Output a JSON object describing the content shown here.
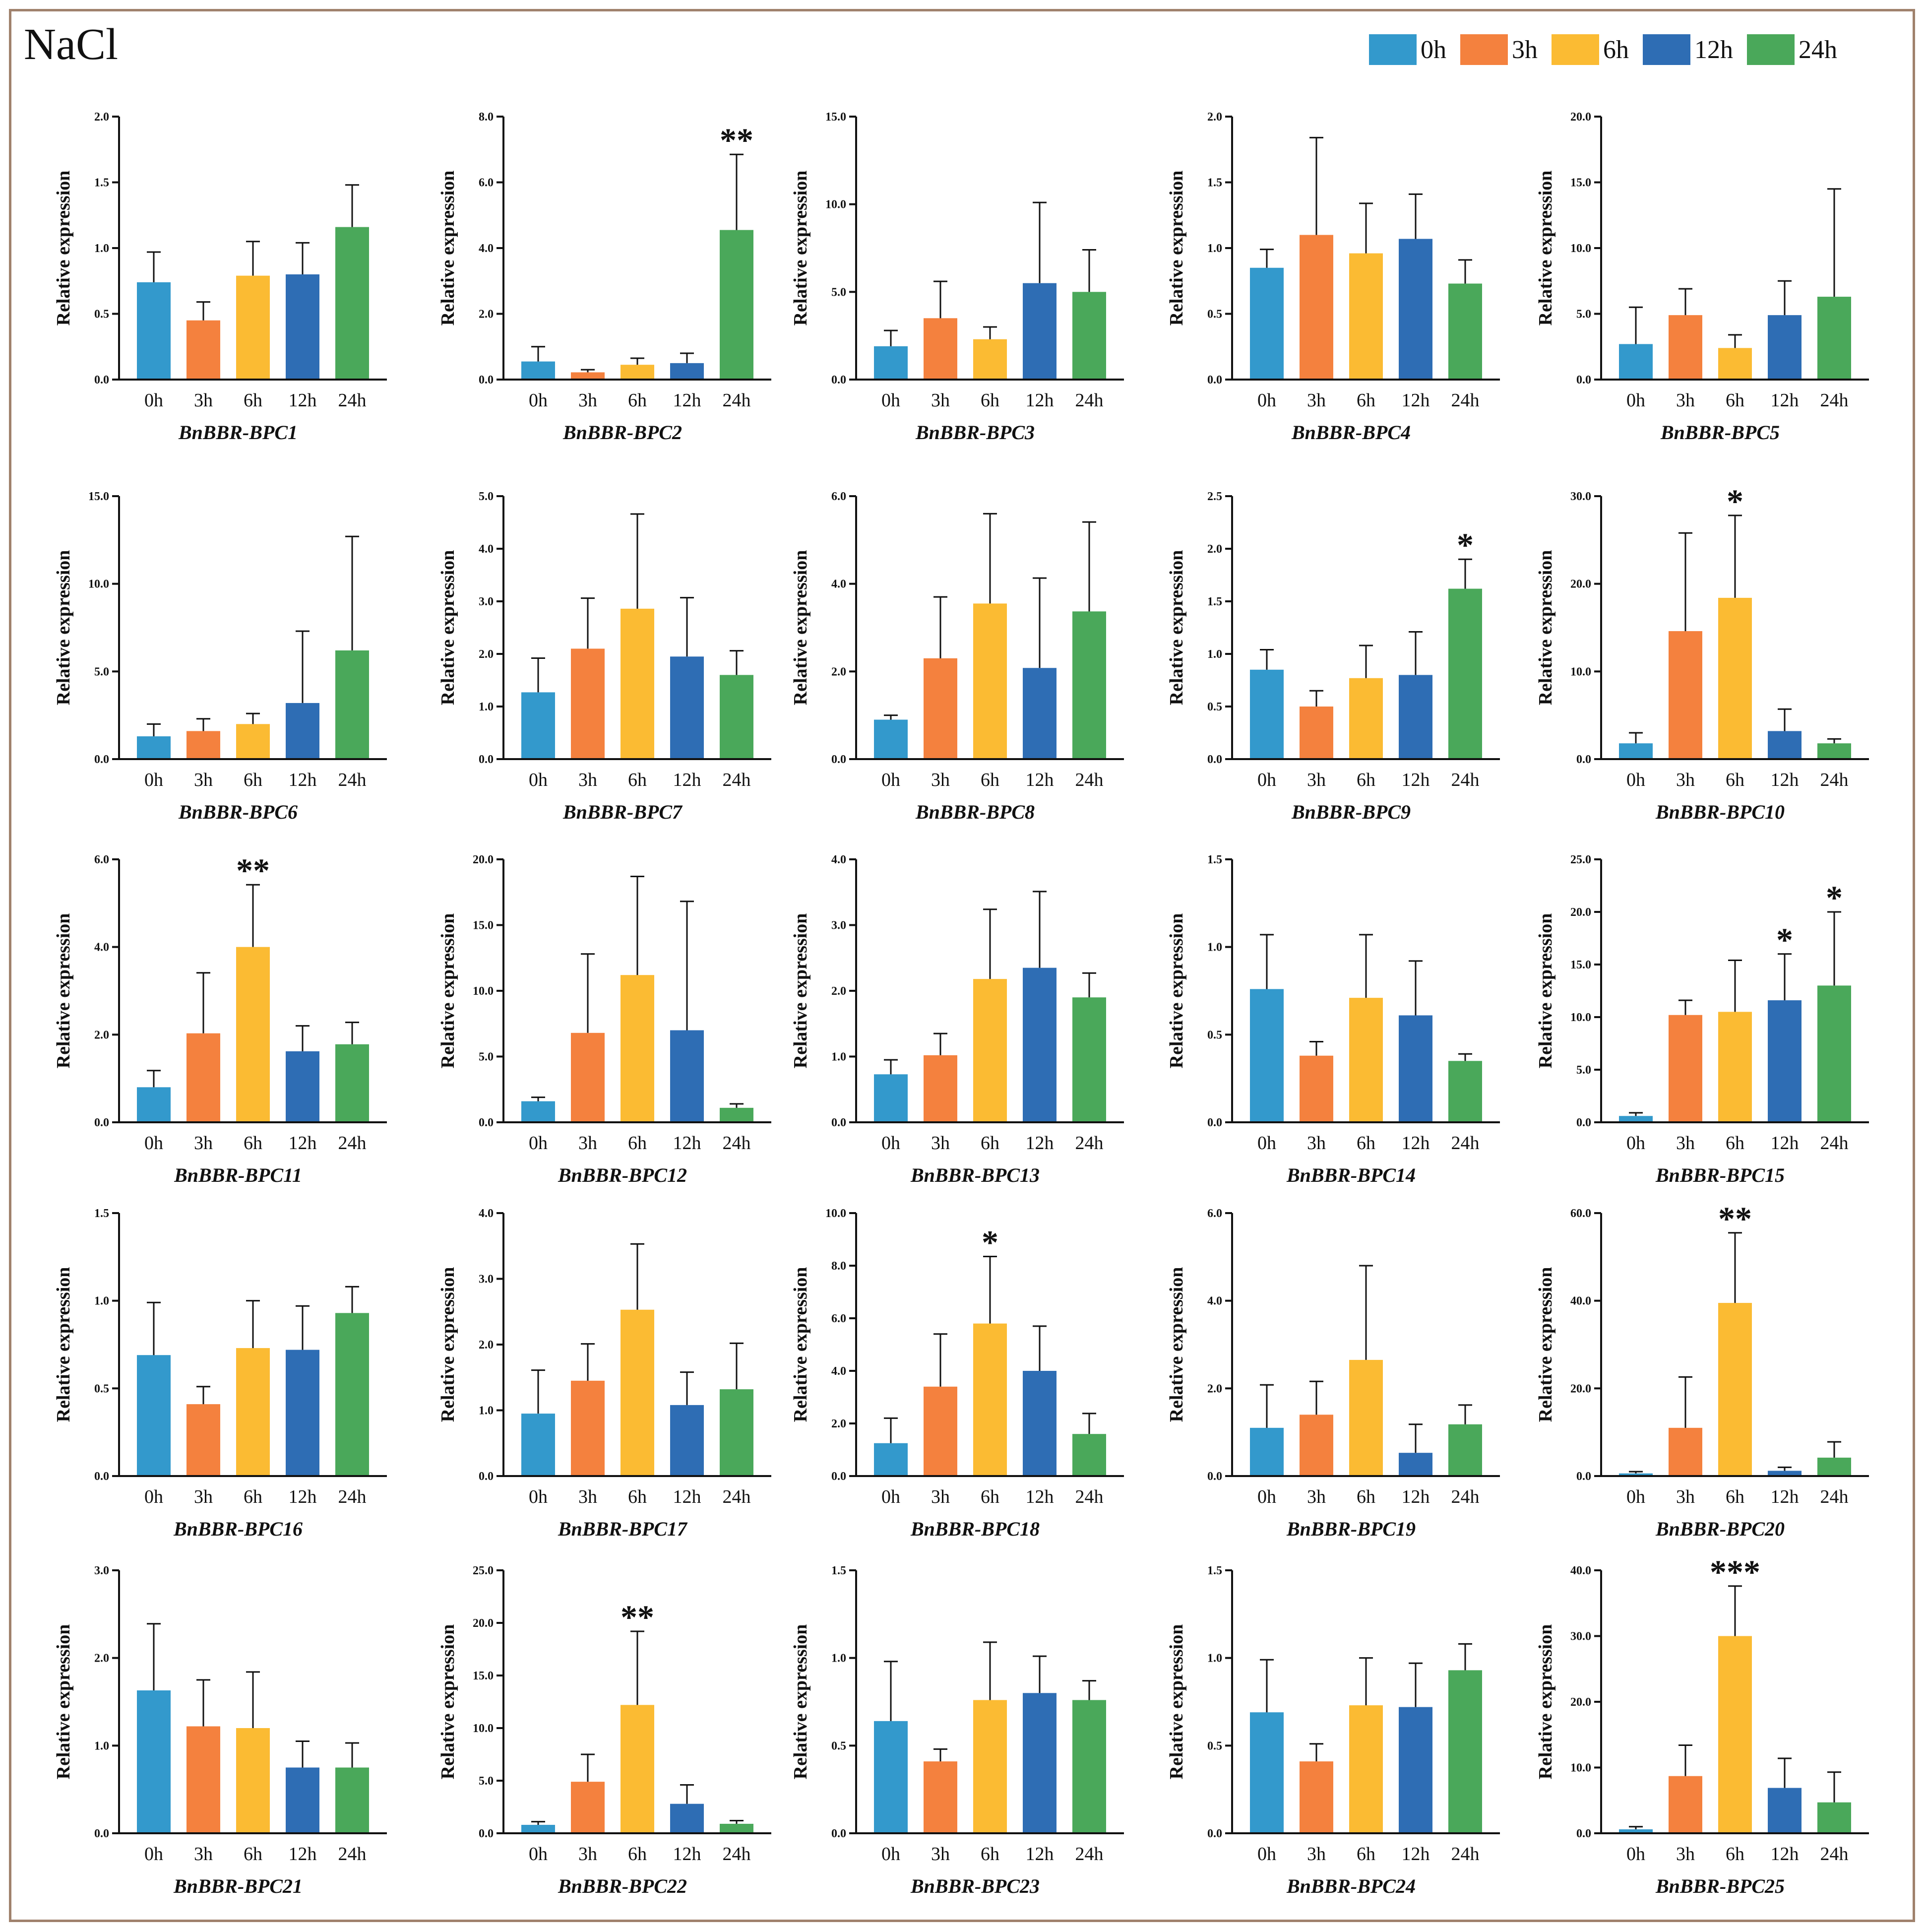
{
  "title": "NaCl",
  "legend": {
    "items": [
      {
        "label": "0h",
        "color": "#3399cc"
      },
      {
        "label": "3h",
        "color": "#f4813e"
      },
      {
        "label": "6h",
        "color": "#fbbb33"
      },
      {
        "label": "12h",
        "color": "#2e6db4"
      },
      {
        "label": "24h",
        "color": "#4aa85a"
      }
    ]
  },
  "chart_data": [
    {
      "type": "bar",
      "title": "BnBBR-BPC1",
      "ylabel": "Relative expression",
      "categories": [
        "0h",
        "3h",
        "6h",
        "12h",
        "24h"
      ],
      "yticks": [
        "0.0",
        "0.5",
        "1.0",
        "1.5",
        "2.0"
      ],
      "ylim": [
        0,
        2
      ],
      "values": [
        0.74,
        0.45,
        0.79,
        0.8,
        1.16
      ],
      "errors": [
        0.23,
        0.14,
        0.26,
        0.24,
        0.32
      ],
      "significance": [
        "",
        "",
        "",
        "",
        ""
      ]
    },
    {
      "type": "bar",
      "title": "BnBBR-BPC2",
      "ylabel": "Relative expression",
      "categories": [
        "0h",
        "3h",
        "6h",
        "12h",
        "24h"
      ],
      "yticks": [
        "0.0",
        "2.0",
        "4.0",
        "6.0",
        "8.0"
      ],
      "ylim": [
        0,
        8
      ],
      "values": [
        0.55,
        0.22,
        0.45,
        0.5,
        4.55
      ],
      "errors": [
        0.45,
        0.08,
        0.2,
        0.3,
        2.3
      ],
      "significance": [
        "",
        "",
        "",
        "",
        "**"
      ]
    },
    {
      "type": "bar",
      "title": "BnBBR-BPC3",
      "ylabel": "Relative expression",
      "categories": [
        "0h",
        "3h",
        "6h",
        "12h",
        "24h"
      ],
      "yticks": [
        "0.0",
        "5.0",
        "10.0",
        "15.0"
      ],
      "ylim": [
        0,
        15
      ],
      "values": [
        1.9,
        3.5,
        2.3,
        5.5,
        5.0
      ],
      "errors": [
        0.9,
        2.1,
        0.7,
        4.6,
        2.4
      ],
      "significance": [
        "",
        "",
        "",
        "",
        ""
      ]
    },
    {
      "type": "bar",
      "title": "BnBBR-BPC4",
      "ylabel": "Relative expression",
      "categories": [
        "0h",
        "3h",
        "6h",
        "12h",
        "24h"
      ],
      "yticks": [
        "0.0",
        "0.5",
        "1.0",
        "1.5",
        "2.0"
      ],
      "ylim": [
        0,
        2
      ],
      "values": [
        0.85,
        1.1,
        0.96,
        1.07,
        0.73
      ],
      "errors": [
        0.14,
        0.74,
        0.38,
        0.34,
        0.18
      ],
      "significance": [
        "",
        "",
        "",
        "",
        ""
      ]
    },
    {
      "type": "bar",
      "title": "BnBBR-BPC5",
      "ylabel": "Relative expression",
      "categories": [
        "0h",
        "3h",
        "6h",
        "12h",
        "24h"
      ],
      "yticks": [
        "0.0",
        "5.0",
        "10.0",
        "15.0",
        "20.0"
      ],
      "ylim": [
        0,
        20
      ],
      "values": [
        2.7,
        4.9,
        2.4,
        4.9,
        6.3
      ],
      "errors": [
        2.8,
        2.0,
        1.0,
        2.6,
        8.2
      ],
      "significance": [
        "",
        "",
        "",
        "",
        ""
      ]
    },
    {
      "type": "bar",
      "title": "BnBBR-BPC6",
      "ylabel": "Relative expression",
      "categories": [
        "0h",
        "3h",
        "6h",
        "12h",
        "24h"
      ],
      "yticks": [
        "0.0",
        "5.0",
        "10.0",
        "15.0"
      ],
      "ylim": [
        0,
        15
      ],
      "values": [
        1.3,
        1.6,
        2.0,
        3.2,
        6.2
      ],
      "errors": [
        0.7,
        0.7,
        0.6,
        4.1,
        6.5
      ],
      "significance": [
        "",
        "",
        "",
        "",
        ""
      ]
    },
    {
      "type": "bar",
      "title": "BnBBR-BPC7",
      "ylabel": "Relative expression",
      "categories": [
        "0h",
        "3h",
        "6h",
        "12h",
        "24h"
      ],
      "yticks": [
        "0.0",
        "1.0",
        "2.0",
        "3.0",
        "4.0",
        "5.0"
      ],
      "ylim": [
        0,
        5
      ],
      "values": [
        1.27,
        2.1,
        2.86,
        1.95,
        1.6
      ],
      "errors": [
        0.65,
        0.96,
        1.8,
        1.12,
        0.46
      ],
      "significance": [
        "",
        "",
        "",
        "",
        ""
      ]
    },
    {
      "type": "bar",
      "title": "BnBBR-BPC8",
      "ylabel": "Relative expression",
      "categories": [
        "0h",
        "3h",
        "6h",
        "12h",
        "24h"
      ],
      "yticks": [
        "0.0",
        "2.0",
        "4.0",
        "6.0"
      ],
      "ylim": [
        0,
        6
      ],
      "values": [
        0.9,
        2.3,
        3.55,
        2.08,
        3.37
      ],
      "errors": [
        0.1,
        1.4,
        2.05,
        2.05,
        2.04
      ],
      "significance": [
        "",
        "",
        "",
        "",
        ""
      ]
    },
    {
      "type": "bar",
      "title": "BnBBR-BPC9",
      "ylabel": "Relative expression",
      "categories": [
        "0h",
        "3h",
        "6h",
        "12h",
        "24h"
      ],
      "yticks": [
        "0.0",
        "0.5",
        "1.0",
        "1.5",
        "2.0",
        "2.5"
      ],
      "ylim": [
        0,
        2.5
      ],
      "values": [
        0.85,
        0.5,
        0.77,
        0.8,
        1.62
      ],
      "errors": [
        0.19,
        0.15,
        0.31,
        0.41,
        0.28
      ],
      "significance": [
        "",
        "",
        "",
        "",
        "*"
      ]
    },
    {
      "type": "bar",
      "title": "BnBBR-BPC10",
      "ylabel": "Relative expression",
      "categories": [
        "0h",
        "3h",
        "6h",
        "12h",
        "24h"
      ],
      "yticks": [
        "0.0",
        "10.0",
        "20.0",
        "30.0"
      ],
      "ylim": [
        0,
        30
      ],
      "values": [
        1.8,
        14.6,
        18.4,
        3.2,
        1.8
      ],
      "errors": [
        1.2,
        11.2,
        9.4,
        2.5,
        0.5
      ],
      "significance": [
        "",
        "",
        "*",
        "",
        ""
      ]
    },
    {
      "type": "bar",
      "title": "BnBBR-BPC11",
      "ylabel": "Relative expression",
      "categories": [
        "0h",
        "3h",
        "6h",
        "12h",
        "24h"
      ],
      "yticks": [
        "0.0",
        "2.0",
        "4.0",
        "6.0"
      ],
      "ylim": [
        0,
        6
      ],
      "values": [
        0.8,
        2.03,
        4.0,
        1.62,
        1.78
      ],
      "errors": [
        0.38,
        1.38,
        1.42,
        0.58,
        0.5
      ],
      "significance": [
        "",
        "",
        "**",
        "",
        ""
      ]
    },
    {
      "type": "bar",
      "title": "BnBBR-BPC12",
      "ylabel": "Relative expression",
      "categories": [
        "0h",
        "3h",
        "6h",
        "12h",
        "24h"
      ],
      "yticks": [
        "0.0",
        "5.0",
        "10.0",
        "15.0",
        "20.0"
      ],
      "ylim": [
        0,
        20
      ],
      "values": [
        1.6,
        6.8,
        11.2,
        7.0,
        1.1
      ],
      "errors": [
        0.3,
        6.0,
        7.5,
        9.8,
        0.3
      ],
      "significance": [
        "",
        "",
        "",
        "",
        ""
      ]
    },
    {
      "type": "bar",
      "title": "BnBBR-BPC13",
      "ylabel": "Relative expression",
      "categories": [
        "0h",
        "3h",
        "6h",
        "12h",
        "24h"
      ],
      "yticks": [
        "0.0",
        "1.0",
        "2.0",
        "3.0",
        "4.0"
      ],
      "ylim": [
        0,
        4
      ],
      "values": [
        0.73,
        1.02,
        2.18,
        2.35,
        1.9
      ],
      "errors": [
        0.22,
        0.33,
        1.06,
        1.16,
        0.37
      ],
      "significance": [
        "",
        "",
        "",
        "",
        ""
      ]
    },
    {
      "type": "bar",
      "title": "BnBBR-BPC14",
      "ylabel": "Relative expression",
      "categories": [
        "0h",
        "3h",
        "6h",
        "12h",
        "24h"
      ],
      "yticks": [
        "0.0",
        "0.5",
        "1.0",
        "1.5"
      ],
      "ylim": [
        0,
        1.5
      ],
      "values": [
        0.76,
        0.38,
        0.71,
        0.61,
        0.35
      ],
      "errors": [
        0.31,
        0.08,
        0.36,
        0.31,
        0.04
      ],
      "significance": [
        "",
        "",
        "",
        "",
        ""
      ]
    },
    {
      "type": "bar",
      "title": "BnBBR-BPC15",
      "ylabel": "Relative expression",
      "categories": [
        "0h",
        "3h",
        "6h",
        "12h",
        "24h"
      ],
      "yticks": [
        "0.0",
        "5.0",
        "10.0",
        "15.0",
        "20.0",
        "25.0"
      ],
      "ylim": [
        0,
        25
      ],
      "values": [
        0.6,
        10.2,
        10.5,
        11.6,
        13.0
      ],
      "errors": [
        0.3,
        1.4,
        4.9,
        4.4,
        7.0
      ],
      "significance": [
        "",
        "",
        "",
        "*",
        "*"
      ]
    },
    {
      "type": "bar",
      "title": "BnBBR-BPC16",
      "ylabel": "Relative expression",
      "categories": [
        "0h",
        "3h",
        "6h",
        "12h",
        "24h"
      ],
      "yticks": [
        "0.0",
        "0.5",
        "1.0",
        "1.5"
      ],
      "ylim": [
        0,
        1.5
      ],
      "values": [
        0.69,
        0.41,
        0.73,
        0.72,
        0.93
      ],
      "errors": [
        0.3,
        0.1,
        0.27,
        0.25,
        0.15
      ],
      "significance": [
        "",
        "",
        "",
        "",
        ""
      ]
    },
    {
      "type": "bar",
      "title": "BnBBR-BPC17",
      "ylabel": "Relative expression",
      "categories": [
        "0h",
        "3h",
        "6h",
        "12h",
        "24h"
      ],
      "yticks": [
        "0.0",
        "1.0",
        "2.0",
        "3.0",
        "4.0"
      ],
      "ylim": [
        0,
        4
      ],
      "values": [
        0.95,
        1.45,
        2.53,
        1.08,
        1.32
      ],
      "errors": [
        0.66,
        0.56,
        1.0,
        0.5,
        0.7
      ],
      "significance": [
        "",
        "",
        "",
        "",
        ""
      ]
    },
    {
      "type": "bar",
      "title": "BnBBR-BPC18",
      "ylabel": "Relative expression",
      "categories": [
        "0h",
        "3h",
        "6h",
        "12h",
        "24h"
      ],
      "yticks": [
        "0.0",
        "2.0",
        "4.0",
        "6.0",
        "8.0",
        "10.0"
      ],
      "ylim": [
        0,
        10
      ],
      "values": [
        1.25,
        3.4,
        5.8,
        4.0,
        1.6
      ],
      "errors": [
        0.95,
        2.0,
        2.55,
        1.7,
        0.78
      ],
      "significance": [
        "",
        "",
        "*",
        "",
        ""
      ]
    },
    {
      "type": "bar",
      "title": "BnBBR-BPC19",
      "ylabel": "Relative expression",
      "categories": [
        "0h",
        "3h",
        "6h",
        "12h",
        "24h"
      ],
      "yticks": [
        "0.0",
        "2.0",
        "4.0",
        "6.0"
      ],
      "ylim": [
        0,
        6
      ],
      "values": [
        1.1,
        1.4,
        2.65,
        0.53,
        1.18
      ],
      "errors": [
        0.98,
        0.76,
        2.15,
        0.65,
        0.44
      ],
      "significance": [
        "",
        "",
        "",
        "",
        ""
      ]
    },
    {
      "type": "bar",
      "title": "BnBBR-BPC20",
      "ylabel": "Relative expression",
      "categories": [
        "0h",
        "3h",
        "6h",
        "12h",
        "24h"
      ],
      "yticks": [
        "0.0",
        "20.0",
        "40.0",
        "60.0"
      ],
      "ylim": [
        0,
        60
      ],
      "values": [
        0.6,
        11.0,
        39.5,
        1.2,
        4.2
      ],
      "errors": [
        0.4,
        11.6,
        16.0,
        0.8,
        3.6
      ],
      "significance": [
        "",
        "",
        "**",
        "",
        ""
      ]
    },
    {
      "type": "bar",
      "title": "BnBBR-BPC21",
      "ylabel": "Relative expression",
      "categories": [
        "0h",
        "3h",
        "6h",
        "12h",
        "24h"
      ],
      "yticks": [
        "0.0",
        "1.0",
        "2.0",
        "3.0"
      ],
      "ylim": [
        0,
        3
      ],
      "values": [
        1.63,
        1.22,
        1.2,
        0.75,
        0.75
      ],
      "errors": [
        0.76,
        0.53,
        0.64,
        0.3,
        0.28
      ],
      "significance": [
        "",
        "",
        "",
        "",
        ""
      ]
    },
    {
      "type": "bar",
      "title": "BnBBR-BPC22",
      "ylabel": "Relative expression",
      "categories": [
        "0h",
        "3h",
        "6h",
        "12h",
        "24h"
      ],
      "yticks": [
        "0.0",
        "5.0",
        "10.0",
        "15.0",
        "20.0",
        "25.0"
      ],
      "ylim": [
        0,
        25
      ],
      "values": [
        0.8,
        4.9,
        12.2,
        2.8,
        0.9
      ],
      "errors": [
        0.3,
        2.6,
        7.0,
        1.8,
        0.3
      ],
      "significance": [
        "",
        "",
        "**",
        "",
        ""
      ]
    },
    {
      "type": "bar",
      "title": "BnBBR-BPC23",
      "ylabel": "Relative expression",
      "categories": [
        "0h",
        "3h",
        "6h",
        "12h",
        "24h"
      ],
      "yticks": [
        "0.0",
        "0.5",
        "1.0",
        "1.5"
      ],
      "ylim": [
        0,
        1.5
      ],
      "values": [
        0.64,
        0.41,
        0.76,
        0.8,
        0.76
      ],
      "errors": [
        0.34,
        0.07,
        0.33,
        0.21,
        0.11
      ],
      "significance": [
        "",
        "",
        "",
        "",
        ""
      ]
    },
    {
      "type": "bar",
      "title": "BnBBR-BPC24",
      "ylabel": "Relative expression",
      "categories": [
        "0h",
        "3h",
        "6h",
        "12h",
        "24h"
      ],
      "yticks": [
        "0.0",
        "0.5",
        "1.0",
        "1.5"
      ],
      "ylim": [
        0,
        1.5
      ],
      "values": [
        0.69,
        0.41,
        0.73,
        0.72,
        0.93
      ],
      "errors": [
        0.3,
        0.1,
        0.27,
        0.25,
        0.15
      ],
      "significance": [
        "",
        "",
        "",
        "",
        ""
      ]
    },
    {
      "type": "bar",
      "title": "BnBBR-BPC25",
      "ylabel": "Relative expression",
      "categories": [
        "0h",
        "3h",
        "6h",
        "12h",
        "24h"
      ],
      "yticks": [
        "0.0",
        "10.0",
        "20.0",
        "30.0",
        "40.0"
      ],
      "ylim": [
        0,
        40
      ],
      "values": [
        0.6,
        8.7,
        30.0,
        6.9,
        4.7
      ],
      "errors": [
        0.4,
        4.7,
        7.6,
        4.5,
        4.6
      ],
      "significance": [
        "",
        "",
        "***",
        "",
        ""
      ]
    }
  ]
}
